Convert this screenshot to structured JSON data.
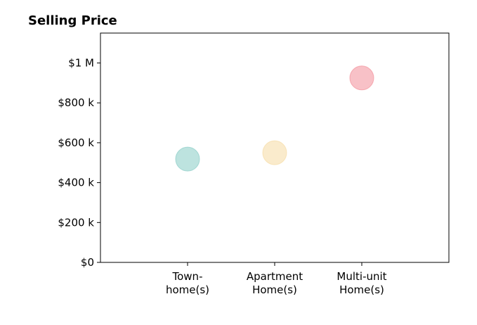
{
  "chart_data": {
    "type": "scatter",
    "title": "Selling Price",
    "xlabel": "",
    "ylabel": "",
    "categories": [
      [
        "Town-",
        "home(s)"
      ],
      [
        "Apartment",
        "Home(s)"
      ],
      [
        "Multi-unit",
        "Home(s)"
      ]
    ],
    "values": [
      518000,
      550000,
      925000
    ],
    "colors": [
      "#7cc7c0",
      "#f5d79a",
      "#f2848f"
    ],
    "xlim": [
      -1,
      3
    ],
    "ylim": [
      0,
      1150000
    ],
    "yticks": [
      0,
      200000,
      400000,
      600000,
      800000,
      1000000
    ],
    "ytick_labels": [
      "$0",
      "$200 k",
      "$400 k",
      "$600 k",
      "$800 k",
      "$1 M"
    ],
    "grid": false,
    "legend": "none"
  }
}
